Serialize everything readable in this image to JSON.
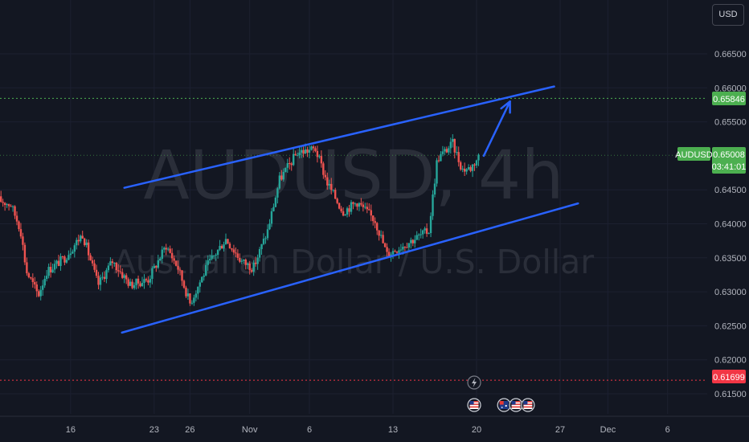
{
  "currency_label": "USD",
  "watermark": {
    "symbol_line": "AUDUSD, 4h",
    "name_line": "Australian Dollar / U.S. Dollar"
  },
  "colors": {
    "background": "#131722",
    "up_candle": "#26a69a",
    "down_candle": "#ef5350",
    "trendline": "#2962ff",
    "resistance_line": "#4caf50",
    "support_line": "#f23645",
    "current_price_line": "#4caf50"
  },
  "chart_data": {
    "type": "candlestick",
    "symbol": "AUDUSD",
    "interval": "4h",
    "ylim": [
      0.61,
      0.67
    ],
    "y_ticks": [
      "0.66500",
      "0.66000",
      "0.65500",
      "0.64500",
      "0.64000",
      "0.63500",
      "0.63000",
      "0.62500",
      "0.62000",
      "0.61500"
    ],
    "x_ticks": [
      {
        "label": "16",
        "day": 16
      },
      {
        "label": "23",
        "day": 23
      },
      {
        "label": "26",
        "day": 26
      },
      {
        "label": "Nov",
        "day": 31
      },
      {
        "label": "6",
        "day": 36
      },
      {
        "label": "13",
        "day": 43
      },
      {
        "label": "20",
        "day": 50
      },
      {
        "label": "27",
        "day": 57
      },
      {
        "label": "Dec",
        "day": 61
      },
      {
        "label": "6",
        "day": 66
      }
    ],
    "price_labels": {
      "resistance": "0.65846",
      "current_symbol": "AUDUSD",
      "current_price": "0.65008",
      "countdown": "03:41:01",
      "support": "0.61699"
    },
    "levels": {
      "resistance": 0.65846,
      "current": 0.65008,
      "support": 0.61699
    },
    "channel": {
      "upper": [
        {
          "day": 20.5,
          "price": 0.6453
        },
        {
          "day": 56.5,
          "price": 0.6602
        }
      ],
      "lower": [
        {
          "day": 20.3,
          "price": 0.624
        },
        {
          "day": 58.5,
          "price": 0.643
        }
      ]
    },
    "projection_arrow": [
      {
        "day": 50.6,
        "price": 0.65
      },
      {
        "day": 52.8,
        "price": 0.658
      }
    ],
    "event_markers": [
      {
        "kind": "lightning-icon",
        "day": 49.8
      },
      {
        "kind": "us-flag-icon",
        "day": 49.8
      },
      {
        "kind": "au-flag-icon",
        "day": 52.3
      },
      {
        "kind": "us-flag-icon",
        "day": 53.3
      },
      {
        "kind": "us-flag-icon",
        "day": 54.3
      }
    ],
    "anchors": [
      {
        "day": 10.0,
        "price": 0.6435
      },
      {
        "day": 11.0,
        "price": 0.6428
      },
      {
        "day": 11.8,
        "price": 0.6392
      },
      {
        "day": 12.3,
        "price": 0.633
      },
      {
        "day": 13.3,
        "price": 0.6295
      },
      {
        "day": 14.0,
        "price": 0.633
      },
      {
        "day": 15.5,
        "price": 0.635
      },
      {
        "day": 17.0,
        "price": 0.6385
      },
      {
        "day": 18.3,
        "price": 0.631
      },
      {
        "day": 19.5,
        "price": 0.6345
      },
      {
        "day": 21.0,
        "price": 0.631
      },
      {
        "day": 22.5,
        "price": 0.6318
      },
      {
        "day": 24.0,
        "price": 0.6368
      },
      {
        "day": 25.0,
        "price": 0.6335
      },
      {
        "day": 26.0,
        "price": 0.6283
      },
      {
        "day": 27.5,
        "price": 0.634
      },
      {
        "day": 29.0,
        "price": 0.6378
      },
      {
        "day": 30.3,
        "price": 0.6345
      },
      {
        "day": 31.3,
        "price": 0.6335
      },
      {
        "day": 32.5,
        "price": 0.639
      },
      {
        "day": 33.5,
        "price": 0.6465
      },
      {
        "day": 35.0,
        "price": 0.6505
      },
      {
        "day": 36.5,
        "price": 0.651
      },
      {
        "day": 37.5,
        "price": 0.646
      },
      {
        "day": 38.8,
        "price": 0.6418
      },
      {
        "day": 40.0,
        "price": 0.6432
      },
      {
        "day": 41.5,
        "price": 0.6405
      },
      {
        "day": 42.5,
        "price": 0.6355
      },
      {
        "day": 43.5,
        "price": 0.6365
      },
      {
        "day": 45.0,
        "price": 0.638
      },
      {
        "day": 46.0,
        "price": 0.639
      },
      {
        "day": 46.7,
        "price": 0.6495
      },
      {
        "day": 48.0,
        "price": 0.6518
      },
      {
        "day": 48.8,
        "price": 0.648
      },
      {
        "day": 49.5,
        "price": 0.6482
      },
      {
        "day": 50.2,
        "price": 0.65
      }
    ]
  }
}
